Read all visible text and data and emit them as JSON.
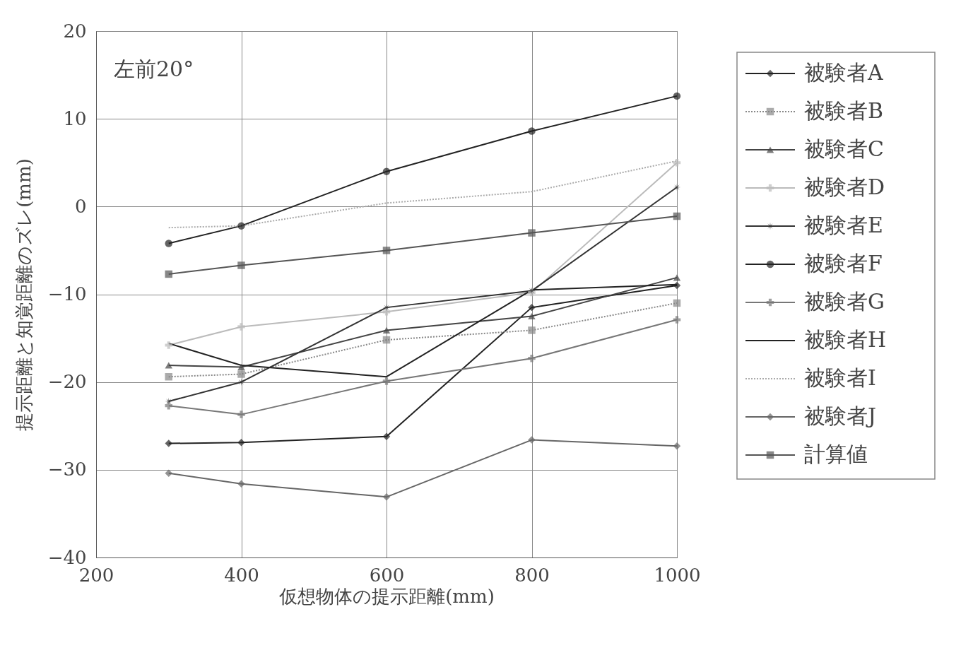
{
  "chart_data": {
    "type": "line",
    "xlabel": "仮想物体の提示距離(mm)",
    "ylabel": "提示距離と知覚距離のズレ(mm)",
    "annotations": [
      "左前20°"
    ],
    "x": [
      300,
      400,
      600,
      800,
      1000
    ],
    "xlim": [
      200,
      1000
    ],
    "xticks": [
      200,
      400,
      600,
      800,
      1000
    ],
    "ylim": [
      -40,
      20
    ],
    "yticks": [
      -40,
      -30,
      -20,
      -10,
      0,
      10,
      20
    ],
    "grid": true,
    "legend": "right",
    "series": [
      {
        "name": "被験者A",
        "color": "#222222",
        "marker": "diamond",
        "line_style": "solid",
        "values": [
          -27.0,
          -26.9,
          -26.2,
          -11.5,
          -9.0
        ]
      },
      {
        "name": "被験者B",
        "color": "#888888",
        "marker": "square",
        "line_style": "dotted",
        "values": [
          -19.4,
          -19.1,
          -15.2,
          -14.1,
          -11.0
        ]
      },
      {
        "name": "被験者C",
        "color": "#444444",
        "marker": "triangle",
        "line_style": "solid",
        "values": [
          -18.1,
          -18.3,
          -14.1,
          -12.5,
          -8.1
        ]
      },
      {
        "name": "被験者D",
        "color": "#bbbbbb",
        "marker": "cross",
        "line_style": "solid",
        "values": [
          -15.8,
          -13.7,
          -12.0,
          -9.8,
          5.0
        ]
      },
      {
        "name": "被験者E",
        "color": "#333333",
        "marker": "star",
        "line_style": "solid",
        "values": [
          -22.2,
          -20.0,
          -11.5,
          -9.6,
          2.2
        ]
      },
      {
        "name": "被験者F",
        "color": "#222222",
        "marker": "circle",
        "line_style": "solid",
        "values": [
          -4.2,
          -2.2,
          4.0,
          8.6,
          12.6
        ]
      },
      {
        "name": "被験者G",
        "color": "#777777",
        "marker": "cross",
        "line_style": "solid",
        "values": [
          -22.7,
          -23.7,
          -19.9,
          -17.3,
          -12.9
        ]
      },
      {
        "name": "被験者H",
        "color": "#222222",
        "marker": "none",
        "line_style": "solid",
        "values": [
          -15.6,
          -18.1,
          -19.4,
          -9.5,
          -8.9
        ]
      },
      {
        "name": "被験者I",
        "color": "#aaaaaa",
        "marker": "none",
        "line_style": "dotted",
        "values": [
          -2.4,
          -2.2,
          0.4,
          1.7,
          5.2
        ]
      },
      {
        "name": "被験者J",
        "color": "#666666",
        "marker": "diamond",
        "line_style": "solid",
        "values": [
          -30.4,
          -31.6,
          -33.1,
          -26.6,
          -27.3
        ]
      },
      {
        "name": "計算値",
        "color": "#555555",
        "marker": "square",
        "line_style": "solid",
        "values": [
          -7.7,
          -6.7,
          -5.0,
          -3.0,
          -1.1
        ]
      }
    ]
  }
}
